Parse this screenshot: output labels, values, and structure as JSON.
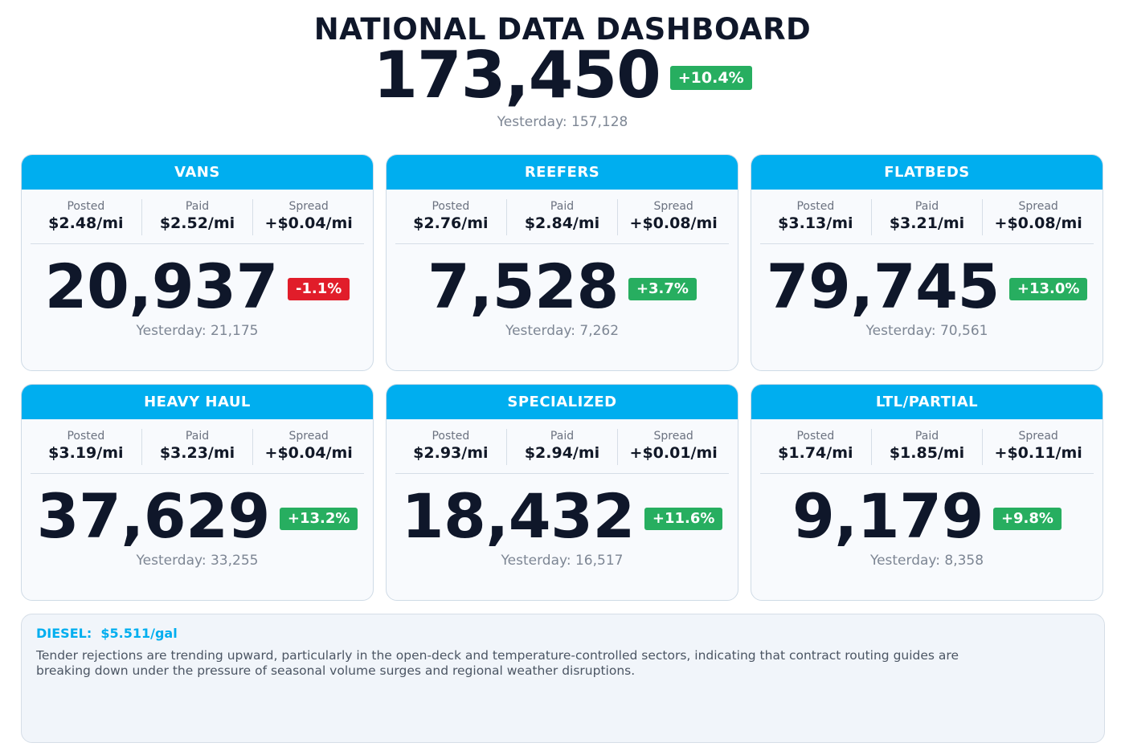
{
  "header": {
    "title": "NATIONAL DATA DASHBOARD",
    "total": "173,450",
    "change": "+10.4%",
    "change_direction": "up",
    "yesterday": "Yesterday: 157,128"
  },
  "colors": {
    "accent": "#00aeef",
    "up": "#27ae60",
    "down": "#e11d2a",
    "text": "#0f172a",
    "muted": "#7d8694"
  },
  "cards": [
    {
      "title": "VANS",
      "metrics": [
        {
          "label": "Posted",
          "value": "$2.48/mi"
        },
        {
          "label": "Paid",
          "value": "$2.52/mi"
        },
        {
          "label": "Spread",
          "value": "+$0.04/mi"
        }
      ],
      "value": "20,937",
      "change": "-1.1%",
      "direction": "down",
      "yesterday": "Yesterday: 21,175"
    },
    {
      "title": "REEFERS",
      "metrics": [
        {
          "label": "Posted",
          "value": "$2.76/mi"
        },
        {
          "label": "Paid",
          "value": "$2.84/mi"
        },
        {
          "label": "Spread",
          "value": "+$0.08/mi"
        }
      ],
      "value": "7,528",
      "change": "+3.7%",
      "direction": "up",
      "yesterday": "Yesterday: 7,262"
    },
    {
      "title": "FLATBEDS",
      "metrics": [
        {
          "label": "Posted",
          "value": "$3.13/mi"
        },
        {
          "label": "Paid",
          "value": "$3.21/mi"
        },
        {
          "label": "Spread",
          "value": "+$0.08/mi"
        }
      ],
      "value": "79,745",
      "change": "+13.0%",
      "direction": "up",
      "yesterday": "Yesterday: 70,561"
    },
    {
      "title": "HEAVY HAUL",
      "metrics": [
        {
          "label": "Posted",
          "value": "$3.19/mi"
        },
        {
          "label": "Paid",
          "value": "$3.23/mi"
        },
        {
          "label": "Spread",
          "value": "+$0.04/mi"
        }
      ],
      "value": "37,629",
      "change": "+13.2%",
      "direction": "up",
      "yesterday": "Yesterday: 33,255"
    },
    {
      "title": "SPECIALIZED",
      "metrics": [
        {
          "label": "Posted",
          "value": "$2.93/mi"
        },
        {
          "label": "Paid",
          "value": "$2.94/mi"
        },
        {
          "label": "Spread",
          "value": "+$0.01/mi"
        }
      ],
      "value": "18,432",
      "change": "+11.6%",
      "direction": "up",
      "yesterday": "Yesterday: 16,517"
    },
    {
      "title": "LTL/PARTIAL",
      "metrics": [
        {
          "label": "Posted",
          "value": "$1.74/mi"
        },
        {
          "label": "Paid",
          "value": "$1.85/mi"
        },
        {
          "label": "Spread",
          "value": "+$0.11/mi"
        }
      ],
      "value": "9,179",
      "change": "+9.8%",
      "direction": "up",
      "yesterday": "Yesterday: 8,358"
    }
  ],
  "note": {
    "title": "DIESEL:  $5.511/gal",
    "text": "Tender rejections are trending upward, particularly in the open-deck and temperature-controlled sectors, indicating that contract routing guides are breaking down under the pressure of seasonal volume surges and regional weather disruptions."
  }
}
